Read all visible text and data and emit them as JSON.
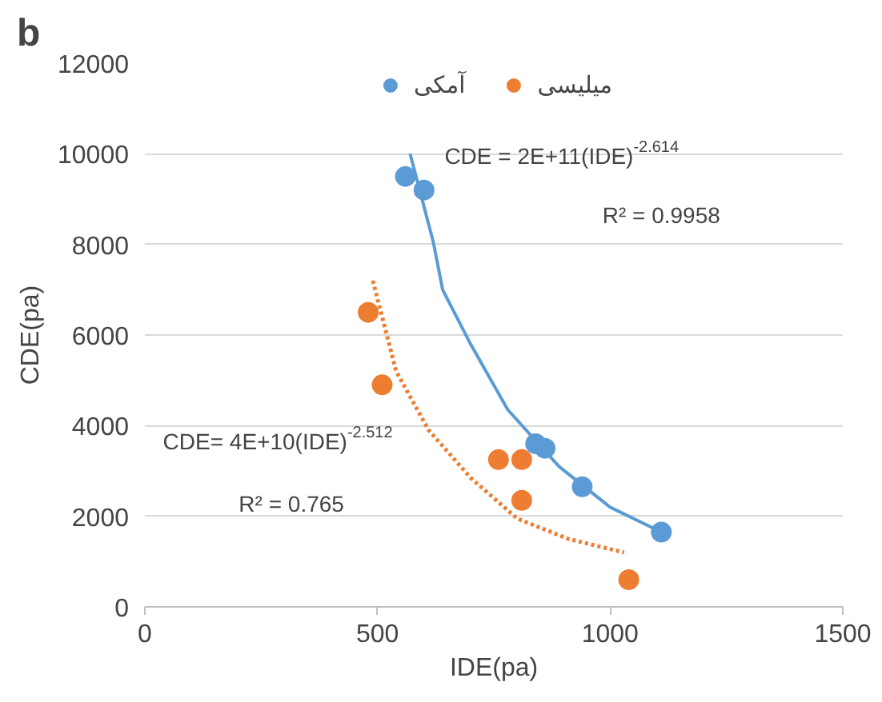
{
  "chart_data": {
    "type": "scatter",
    "title": "b",
    "xlabel": "IDE(pa)",
    "ylabel": "CDE(pa)",
    "xlim": [
      0,
      1500
    ],
    "xticks": [
      0,
      500,
      1000,
      1500
    ],
    "ylim": [
      0,
      12000
    ],
    "yticks": [
      0,
      2000,
      4000,
      6000,
      8000,
      10000,
      12000
    ],
    "grid": "y",
    "legend": "top",
    "series": [
      {
        "name": "آمکی",
        "color": "#5b9bd5",
        "marker": "circle",
        "x": [
          560,
          600,
          840,
          860,
          940,
          1110
        ],
        "values": [
          9500,
          9200,
          3600,
          3500,
          2650,
          1650
        ]
      },
      {
        "name": "میلیسی",
        "color": "#ed7d31",
        "marker": "circle",
        "x": [
          480,
          510,
          760,
          810,
          810,
          1040
        ],
        "values": [
          6500,
          4900,
          3250,
          3250,
          2350,
          600
        ]
      },
      {
        "type": "line",
        "color": "#5b9bd5",
        "marker": "none",
        "line_style": "solid",
        "x": [
          570,
          620,
          640,
          700,
          780,
          890,
          1000,
          1110
        ],
        "values": [
          10000,
          8050,
          7000,
          5800,
          4350,
          3100,
          2200,
          1650
        ]
      },
      {
        "type": "line",
        "color": "#ed7d31",
        "marker": "none",
        "line_style": "dotted",
        "x": [
          490,
          540,
          610,
          700,
          800,
          910,
          1030
        ],
        "values": [
          7200,
          5200,
          3900,
          2850,
          1950,
          1500,
          1200
        ]
      }
    ],
    "annotations": [
      "CDE = 2E+11(IDE)$^{-2.614}$",
      "R² = 0.9958",
      "CDE= 4E+10(IDE)$^{-2.512}$",
      "R² = 0.765"
    ]
  }
}
